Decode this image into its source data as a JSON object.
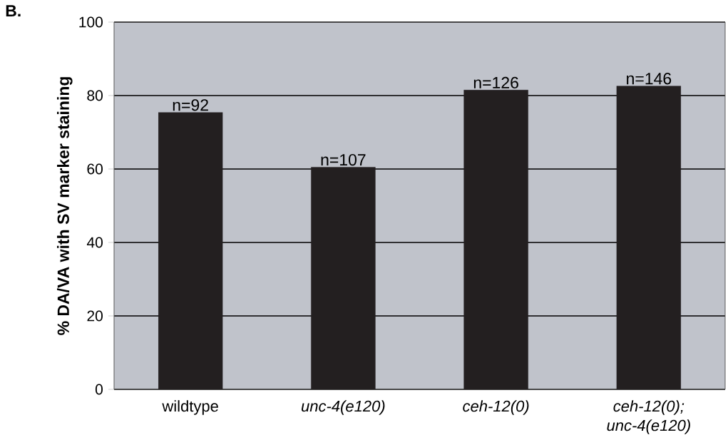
{
  "chart_data": {
    "type": "bar",
    "ylabel": "% DA/VA with SV marker staining",
    "categories": [
      "wildtype",
      "*unc-4(e120)*",
      "*ceh-12(0)*",
      "*ceh-12(0); unc-4(e120)*"
    ],
    "values": [
      75.4,
      60.5,
      81.5,
      82.6
    ],
    "color": "#231f20",
    "ylim": [
      0,
      100
    ],
    "yticks": [
      0,
      20,
      40,
      60,
      80,
      100
    ],
    "grid": "y",
    "annotations": [
      "B.",
      {
        "text": "n=92",
        "x": "wildtype",
        "y": 75.4
      },
      {
        "text": "n=107",
        "x": "*unc-4(e120)*",
        "y": 60.5
      },
      {
        "text": "n=126",
        "x": "*ceh-12(0)*",
        "y": 81.5
      },
      {
        "text": "n=146",
        "x": "*ceh-12(0); unc-4(e120)*",
        "y": 82.6
      }
    ]
  }
}
